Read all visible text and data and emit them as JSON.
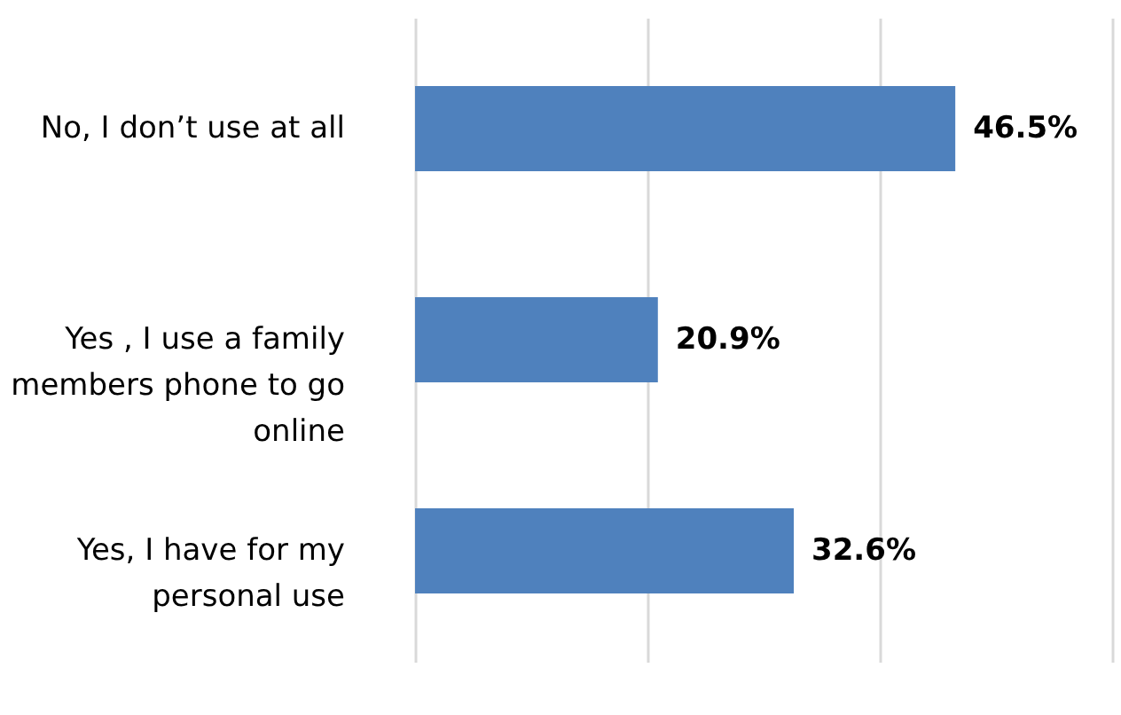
{
  "chart_data": {
    "type": "bar",
    "orientation": "horizontal",
    "categories": [
      "No, I don’t use at all",
      "Yes , I use a family members phone to go online",
      "Yes, I have for my personal use"
    ],
    "values": [
      46.5,
      20.9,
      32.6
    ],
    "value_labels": [
      "46.5%",
      "20.9%",
      "32.6%"
    ],
    "color": "#4f81bd",
    "xlim": [
      0,
      60
    ],
    "xticks": [
      {
        "value": 0,
        "label": null
      },
      {
        "value": 20,
        "label": null
      },
      {
        "value": 40,
        "label": null
      },
      {
        "value": 60,
        "label": null
      }
    ],
    "grid": "x",
    "tick_labels": "y"
  }
}
